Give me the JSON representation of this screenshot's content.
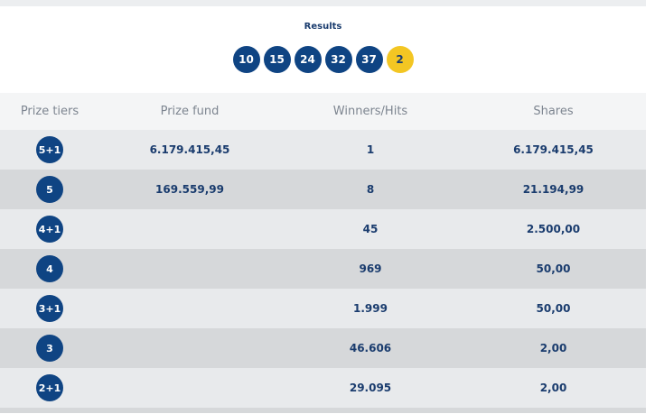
{
  "results": {
    "title": "Results",
    "numbers": [
      "10",
      "15",
      "24",
      "32",
      "37"
    ],
    "bonus": "2"
  },
  "table": {
    "headers": [
      "Prize tiers",
      "Prize fund",
      "Winners/Hits",
      "Shares"
    ],
    "rows": [
      {
        "tier": "5+1",
        "fund": "6.179.415,45",
        "winners": "1",
        "shares": "6.179.415,45"
      },
      {
        "tier": "5",
        "fund": "169.559,99",
        "winners": "8",
        "shares": "21.194,99"
      },
      {
        "tier": "4+1",
        "fund": "",
        "winners": "45",
        "shares": "2.500,00"
      },
      {
        "tier": "4",
        "fund": "",
        "winners": "969",
        "shares": "50,00"
      },
      {
        "tier": "3+1",
        "fund": "",
        "winners": "1.999",
        "shares": "50,00"
      },
      {
        "tier": "3",
        "fund": "",
        "winners": "46.606",
        "shares": "2,00"
      },
      {
        "tier": "2+1",
        "fund": "",
        "winners": "29.095",
        "shares": "2,00"
      }
    ]
  },
  "colors": {
    "primary": "#0f4483",
    "bonus": "#f3c623",
    "row_light": "#e8eaec",
    "row_dark": "#d6d8da"
  }
}
